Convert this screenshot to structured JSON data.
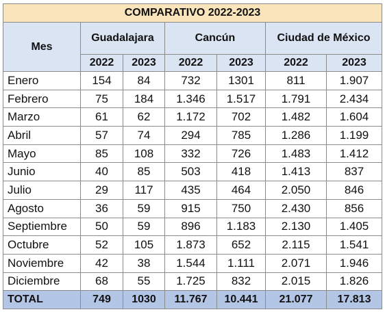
{
  "title": "COMPARATIVO 2022-2023",
  "header": {
    "mes": "Mes",
    "cities": [
      "Guadalajara",
      "Cancún",
      "Ciudad de México"
    ],
    "years": [
      "2022",
      "2023"
    ]
  },
  "rows": [
    {
      "mes": "Enero",
      "vals": [
        "154",
        "84",
        "732",
        "1301",
        "811",
        "1.907"
      ]
    },
    {
      "mes": "Febrero",
      "vals": [
        "75",
        "184",
        "1.346",
        "1.517",
        "1.791",
        "2.434"
      ]
    },
    {
      "mes": "Marzo",
      "vals": [
        "61",
        "62",
        "1.172",
        "702",
        "1.482",
        "1.604"
      ]
    },
    {
      "mes": "Abril",
      "vals": [
        "57",
        "74",
        "294",
        "785",
        "1.286",
        "1.199"
      ]
    },
    {
      "mes": "Mayo",
      "vals": [
        "85",
        "108",
        "332",
        "726",
        "1.483",
        "1.412"
      ]
    },
    {
      "mes": "Junio",
      "vals": [
        "40",
        "85",
        "503",
        "418",
        "1.413",
        "837"
      ]
    },
    {
      "mes": "Julio",
      "vals": [
        "29",
        "117",
        "435",
        "464",
        "2.050",
        "846"
      ]
    },
    {
      "mes": "Agosto",
      "vals": [
        "36",
        "59",
        "915",
        "750",
        "2.430",
        "856"
      ]
    },
    {
      "mes": "Septiembre",
      "vals": [
        "50",
        "59",
        "896",
        "1.183",
        "2.130",
        "1.405"
      ]
    },
    {
      "mes": "Octubre",
      "vals": [
        "52",
        "105",
        "1.873",
        "652",
        "2.115",
        "1.541"
      ]
    },
    {
      "mes": "Noviembre",
      "vals": [
        "42",
        "38",
        "1.544",
        "1.111",
        "2.071",
        "1.946"
      ]
    },
    {
      "mes": "Diciembre",
      "vals": [
        "68",
        "55",
        "1.725",
        "832",
        "2.015",
        "1.826"
      ]
    }
  ],
  "total": {
    "label": "TOTAL",
    "vals": [
      "749",
      "1030",
      "11.767",
      "10.441",
      "21.077",
      "17.813"
    ]
  },
  "colors": {
    "title_bg": "#f9e4bc",
    "header_bg": "#dae4f2",
    "total_bg": "#b4c6e6"
  }
}
